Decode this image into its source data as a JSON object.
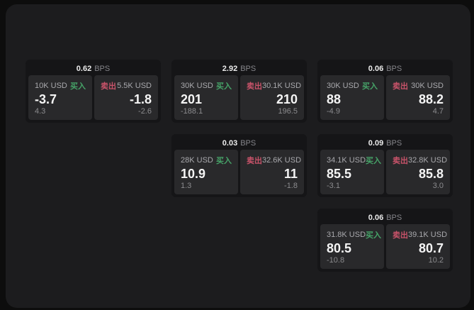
{
  "shared": {
    "bps_unit": "BPS",
    "buy_label": "买入",
    "sell_label": "卖出",
    "colors": {
      "buy_green": "#46a368",
      "sell_red": "#c9536a",
      "page_bg": "#1c1c1e",
      "card_bg": "#151517",
      "panel_bg": "#29292b"
    }
  },
  "cards": [
    {
      "bps": "0.62",
      "col": 1,
      "row": 1,
      "buy": {
        "amount": "10K USD",
        "price": "-3.7",
        "change": "4.3"
      },
      "sell": {
        "amount": "5.5K USD",
        "price": "-1.8",
        "change": "-2.6"
      }
    },
    {
      "bps": "2.92",
      "col": 2,
      "row": 1,
      "buy": {
        "amount": "30K USD",
        "price": "201",
        "change": "-188.1"
      },
      "sell": {
        "amount": "30.1K USD",
        "price": "210",
        "change": "196.5"
      }
    },
    {
      "bps": "0.06",
      "col": 3,
      "row": 1,
      "buy": {
        "amount": "30K USD",
        "price": "88",
        "change": "-4.9"
      },
      "sell": {
        "amount": "30K USD",
        "price": "88.2",
        "change": "4.7"
      }
    },
    {
      "bps": "0.03",
      "col": 2,
      "row": 2,
      "buy": {
        "amount": "28K USD",
        "price": "10.9",
        "change": "1.3"
      },
      "sell": {
        "amount": "32.6K USD",
        "price": "11",
        "change": "-1.8"
      }
    },
    {
      "bps": "0.09",
      "col": 3,
      "row": 2,
      "buy": {
        "amount": "34.1K USD",
        "price": "85.5",
        "change": "-3.1"
      },
      "sell": {
        "amount": "32.8K USD",
        "price": "85.8",
        "change": "3.0"
      }
    },
    {
      "bps": "0.06",
      "col": 3,
      "row": 3,
      "buy": {
        "amount": "31.8K USD",
        "price": "80.5",
        "change": "-10.8"
      },
      "sell": {
        "amount": "39.1K USD",
        "price": "80.7",
        "change": "10.2"
      }
    }
  ]
}
